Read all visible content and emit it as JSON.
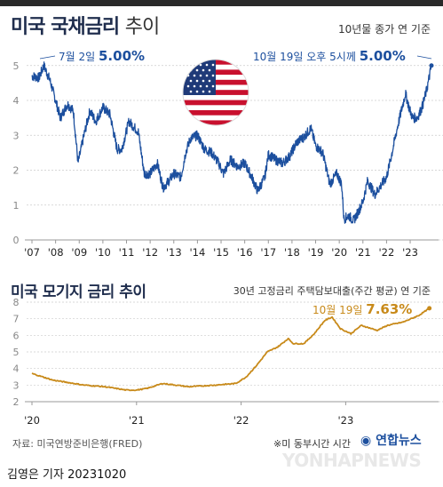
{
  "title": {
    "bold": "미국 국채금리",
    "light": "추이"
  },
  "subtitle": "10년물 종가 연 기준",
  "top_chart": {
    "peak_label": "7월 2일",
    "peak_value": "5.00%",
    "latest_label": "10월 19일 오후 5시께",
    "latest_value": "5.00%"
  },
  "bottom_chart": {
    "title": "미국 모기지 금리 추이",
    "subtitle": "30년 고정금리 주택담보대출(주간 평균) 연 기준",
    "latest_label": "10월 19일",
    "latest_value": "7.63%"
  },
  "source": "자료: 미국연방준비은행(FRED)",
  "timezone_note": "※미 동부시간 시간",
  "agency_logo": "연합뉴스",
  "byline": "김영은 기자  20231020",
  "watermark": "YONHAPNEWS",
  "colors": {
    "treasury": "#1c4f9e",
    "mortgage": "#c88a1a",
    "title": "#1f2d4d"
  },
  "icons": {
    "flag": "us-flag-icon",
    "logo": "yonhap-logo-icon"
  },
  "chart_data": [
    {
      "type": "line",
      "title": "미국 국채금리 추이",
      "ylabel": "",
      "ylim": [
        0,
        5.3
      ],
      "yticks": [
        0,
        1,
        2,
        3,
        4,
        5
      ],
      "xlim": [
        2007.0,
        2023.9
      ],
      "xtick_values": [
        2007,
        2008,
        2009,
        2010,
        2011,
        2012,
        2013,
        2014,
        2015,
        2016,
        2017,
        2018,
        2019,
        2020,
        2021,
        2022,
        2023
      ],
      "xtick_labels": [
        "'07",
        "'08",
        "'09",
        "'10",
        "'11",
        "'12",
        "'13",
        "'14",
        "'15",
        "'16",
        "'17",
        "'18",
        "'19",
        "'20",
        "'21",
        "'22",
        "'23"
      ],
      "grid": true,
      "series": [
        {
          "x": [
            2007.0,
            2007.3,
            2007.5,
            2007.75,
            2008.0,
            2008.2,
            2008.5,
            2008.75,
            2008.95,
            2009.2,
            2009.45,
            2009.7,
            2010.0,
            2010.3,
            2010.6,
            2010.8,
            2011.1,
            2011.5,
            2011.75,
            2012.0,
            2012.3,
            2012.55,
            2012.8,
            2013.0,
            2013.3,
            2013.5,
            2013.7,
            2014.0,
            2014.3,
            2014.6,
            2014.9,
            2015.1,
            2015.4,
            2015.7,
            2016.0,
            2016.3,
            2016.55,
            2016.85,
            2017.0,
            2017.3,
            2017.6,
            2017.9,
            2018.2,
            2018.5,
            2018.8,
            2019.0,
            2019.3,
            2019.6,
            2019.9,
            2020.1,
            2020.2,
            2020.4,
            2020.6,
            2020.8,
            2021.0,
            2021.2,
            2021.5,
            2021.8,
            2022.0,
            2022.2,
            2022.45,
            2022.8,
            2022.95,
            2023.1,
            2023.3,
            2023.5,
            2023.7,
            2023.9
          ],
          "values": [
            4.7,
            4.65,
            5.0,
            4.6,
            4.0,
            3.5,
            3.9,
            3.7,
            2.2,
            3.0,
            3.7,
            3.4,
            3.8,
            3.6,
            2.6,
            2.6,
            3.4,
            3.1,
            1.9,
            1.9,
            2.2,
            1.5,
            1.7,
            1.9,
            1.8,
            2.5,
            2.9,
            3.0,
            2.6,
            2.5,
            2.2,
            1.9,
            2.3,
            2.1,
            2.2,
            1.8,
            1.4,
            1.8,
            2.45,
            2.3,
            2.2,
            2.4,
            2.8,
            2.95,
            3.2,
            2.7,
            2.5,
            1.6,
            1.9,
            1.6,
            0.6,
            0.7,
            0.55,
            0.8,
            1.1,
            1.7,
            1.3,
            1.6,
            1.8,
            2.4,
            3.2,
            4.2,
            3.8,
            3.5,
            3.5,
            3.8,
            4.3,
            5.0
          ]
        }
      ]
    },
    {
      "type": "line",
      "title": "미국 모기지 금리 추이",
      "ylabel": "",
      "ylim": [
        2,
        8
      ],
      "yticks": [
        2,
        3,
        4,
        5,
        6,
        7,
        8
      ],
      "xlim": [
        2020.0,
        2023.82
      ],
      "xtick_values": [
        2020,
        2021,
        2022,
        2023
      ],
      "xtick_labels": [
        "'20",
        "'21",
        "'22",
        "'23"
      ],
      "grid": true,
      "series": [
        {
          "x": [
            2020.0,
            2020.1,
            2020.2,
            2020.3,
            2020.5,
            2020.7,
            2020.9,
            2021.0,
            2021.1,
            2021.25,
            2021.5,
            2021.75,
            2021.95,
            2022.05,
            2022.15,
            2022.25,
            2022.35,
            2022.45,
            2022.5,
            2022.6,
            2022.7,
            2022.8,
            2022.87,
            2022.95,
            2023.05,
            2023.15,
            2023.3,
            2023.4,
            2023.55,
            2023.7,
            2023.8
          ],
          "values": [
            3.7,
            3.5,
            3.3,
            3.2,
            3.0,
            2.9,
            2.7,
            2.7,
            2.8,
            3.1,
            2.9,
            3.0,
            3.1,
            3.5,
            4.2,
            5.0,
            5.3,
            5.8,
            5.5,
            5.5,
            6.1,
            6.9,
            7.1,
            6.4,
            6.1,
            6.6,
            6.3,
            6.6,
            6.8,
            7.2,
            7.63
          ]
        }
      ]
    }
  ]
}
